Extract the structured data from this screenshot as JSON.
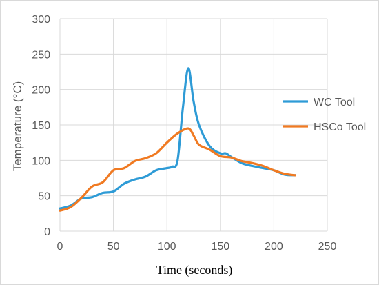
{
  "chart_data": {
    "type": "line",
    "title": "",
    "xlabel": "Time (seconds)",
    "ylabel": "Temperature (°C)",
    "xlim": [
      0,
      250
    ],
    "ylim": [
      0,
      300
    ],
    "xticks": [
      0,
      50,
      100,
      150,
      200,
      250
    ],
    "yticks": [
      0,
      50,
      100,
      150,
      200,
      250,
      300
    ],
    "grid": "vertical and horizontal",
    "legend_position": "right",
    "series": [
      {
        "name": "WC Tool",
        "color": "#2E9BD6",
        "points": [
          [
            0,
            32
          ],
          [
            10,
            36
          ],
          [
            20,
            46
          ],
          [
            30,
            48
          ],
          [
            40,
            54
          ],
          [
            50,
            56
          ],
          [
            60,
            67
          ],
          [
            70,
            73
          ],
          [
            80,
            77
          ],
          [
            90,
            86
          ],
          [
            100,
            89
          ],
          [
            105,
            91
          ],
          [
            110,
            100
          ],
          [
            115,
            175
          ],
          [
            120,
            230
          ],
          [
            125,
            183
          ],
          [
            130,
            150
          ],
          [
            140,
            120
          ],
          [
            150,
            110
          ],
          [
            155,
            110
          ],
          [
            160,
            105
          ],
          [
            170,
            96
          ],
          [
            180,
            92
          ],
          [
            190,
            89
          ],
          [
            200,
            86
          ],
          [
            210,
            80
          ],
          [
            220,
            79
          ]
        ]
      },
      {
        "name": "HSCo Tool",
        "color": "#F07A22",
        "points": [
          [
            0,
            29
          ],
          [
            10,
            34
          ],
          [
            20,
            47
          ],
          [
            30,
            63
          ],
          [
            40,
            69
          ],
          [
            50,
            86
          ],
          [
            60,
            89
          ],
          [
            70,
            99
          ],
          [
            80,
            103
          ],
          [
            90,
            110
          ],
          [
            100,
            125
          ],
          [
            110,
            138
          ],
          [
            120,
            145
          ],
          [
            125,
            135
          ],
          [
            130,
            122
          ],
          [
            140,
            115
          ],
          [
            150,
            106
          ],
          [
            160,
            104
          ],
          [
            170,
            99
          ],
          [
            180,
            96
          ],
          [
            190,
            92
          ],
          [
            200,
            86
          ],
          [
            210,
            81
          ],
          [
            220,
            79
          ]
        ]
      }
    ]
  }
}
